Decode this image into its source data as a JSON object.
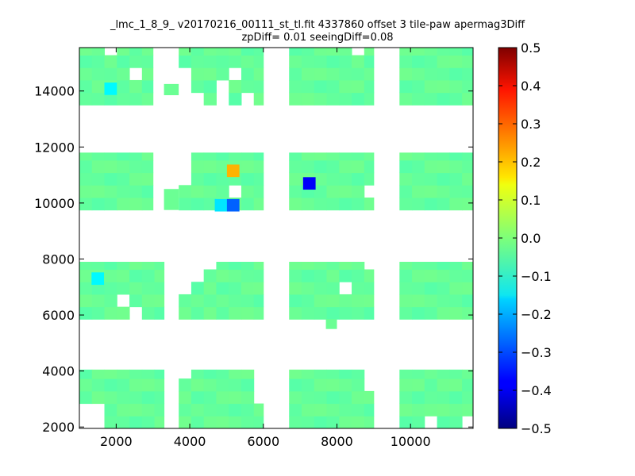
{
  "chart_data": {
    "type": "heatmap",
    "title_lines": [
      "_lmc_1_8_9_ v20170216_00111_st_tl.fit 4337860 offset 3 tile-paw apermag3Diff",
      "zpDiff= 0.01 seeingDiff=0.08"
    ],
    "xlabel": "",
    "ylabel": "",
    "xlim": [
      1000,
      11700
    ],
    "ylim": [
      1950,
      15550
    ],
    "xticks": [
      2000,
      4000,
      6000,
      8000,
      10000
    ],
    "yticks": [
      2000,
      4000,
      6000,
      8000,
      10000,
      12000,
      14000
    ],
    "colorbar": {
      "colormap": "jet",
      "range": [
        -0.5,
        0.5
      ],
      "ticks": [
        "0.5",
        "0.4",
        "0.3",
        "0.2",
        "0.1",
        "0.0",
        "−0.1",
        "−0.2",
        "−0.3",
        "−0.4",
        "−0.5"
      ]
    },
    "grid": false,
    "cell_size": [
      340,
      445
    ],
    "background_value": -0.02,
    "regions": [
      {
        "x": [
          1000,
          3000
        ],
        "y": [
          13500,
          15550
        ]
      },
      {
        "x": [
          3700,
          6000
        ],
        "y": [
          13500,
          15550
        ]
      },
      {
        "x": [
          6700,
          9000
        ],
        "y": [
          13500,
          15550
        ]
      },
      {
        "x": [
          9700,
          11700
        ],
        "y": [
          13500,
          15550
        ]
      },
      {
        "x": [
          1000,
          3000
        ],
        "y": [
          9750,
          11800
        ]
      },
      {
        "x": [
          3700,
          6000
        ],
        "y": [
          9750,
          11800
        ]
      },
      {
        "x": [
          6700,
          9000
        ],
        "y": [
          9750,
          11800
        ]
      },
      {
        "x": [
          9700,
          11700
        ],
        "y": [
          9750,
          11800
        ]
      },
      {
        "x": [
          1000,
          3300
        ],
        "y": [
          5850,
          7900
        ]
      },
      {
        "x": [
          3700,
          6000
        ],
        "y": [
          5850,
          7900
        ]
      },
      {
        "x": [
          6700,
          9000
        ],
        "y": [
          5850,
          7900
        ]
      },
      {
        "x": [
          9700,
          11700
        ],
        "y": [
          5850,
          7900
        ]
      },
      {
        "x": [
          1000,
          3300
        ],
        "y": [
          1950,
          4050
        ]
      },
      {
        "x": [
          3700,
          6000
        ],
        "y": [
          1950,
          4050
        ]
      },
      {
        "x": [
          6700,
          9000
        ],
        "y": [
          1950,
          4050
        ]
      },
      {
        "x": [
          9700,
          11700
        ],
        "y": [
          1950,
          4050
        ]
      }
    ],
    "holes": [
      {
        "x": [
          1700,
          2050
        ],
        "y": [
          15150,
          15550
        ]
      },
      {
        "x": [
          2350,
          2650
        ],
        "y": [
          14250,
          14700
        ]
      },
      {
        "x": [
          3700,
          4050
        ],
        "y": [
          13500,
          14700
        ]
      },
      {
        "x": [
          4050,
          4350
        ],
        "y": [
          13500,
          13850
        ]
      },
      {
        "x": [
          4650,
          5000
        ],
        "y": [
          13500,
          14250
        ]
      },
      {
        "x": [
          5000,
          5350
        ],
        "y": [
          14250,
          14700
        ]
      },
      {
        "x": [
          5350,
          5700
        ],
        "y": [
          13500,
          13850
        ]
      },
      {
        "x": [
          8350,
          8650
        ],
        "y": [
          15150,
          15550
        ]
      },
      {
        "x": [
          5000,
          5350
        ],
        "y": [
          10150,
          10500
        ]
      },
      {
        "x": [
          3700,
          4050
        ],
        "y": [
          10500,
          11800
        ]
      },
      {
        "x": [
          8650,
          9000
        ],
        "y": [
          10150,
          10500
        ]
      },
      {
        "x": [
          2350,
          2650
        ],
        "y": [
          5850,
          6250
        ]
      },
      {
        "x": [
          2000,
          2350
        ],
        "y": [
          6250,
          6600
        ]
      },
      {
        "x": [
          3700,
          4050
        ],
        "y": [
          6600,
          7900
        ]
      },
      {
        "x": [
          4050,
          4350
        ],
        "y": [
          7050,
          7900
        ]
      },
      {
        "x": [
          4350,
          4650
        ],
        "y": [
          7500,
          7900
        ]
      },
      {
        "x": [
          8000,
          8350
        ],
        "y": [
          6600,
          7050
        ]
      },
      {
        "x": [
          8650,
          9000
        ],
        "y": [
          7500,
          7900
        ]
      },
      {
        "x": [
          1000,
          1700
        ],
        "y": [
          1950,
          2800
        ]
      },
      {
        "x": [
          3700,
          4050
        ],
        "y": [
          3650,
          4050
        ]
      },
      {
        "x": [
          5700,
          6000
        ],
        "y": [
          2800,
          4050
        ]
      },
      {
        "x": [
          8650,
          9000
        ],
        "y": [
          3200,
          4050
        ]
      },
      {
        "x": [
          10350,
          10700
        ],
        "y": [
          1950,
          2400
        ]
      },
      {
        "x": [
          11350,
          11700
        ],
        "y": [
          1950,
          2400
        ]
      }
    ],
    "extra_cells": [
      {
        "x": [
          7700,
          8000
        ],
        "y": [
          5500,
          5850
        ],
        "value": -0.02
      },
      {
        "x": [
          3300,
          3700
        ],
        "y": [
          13850,
          14250
        ],
        "value": -0.02
      },
      {
        "x": [
          3300,
          3700
        ],
        "y": [
          9750,
          10500
        ],
        "value": -0.02
      }
    ],
    "highlight_cells": [
      {
        "x": 1850,
        "y": 14080,
        "value": -0.13
      },
      {
        "x": 5180,
        "y": 11150,
        "value": 0.2
      },
      {
        "x": 4850,
        "y": 9920,
        "value": -0.15
      },
      {
        "x": 5180,
        "y": 9920,
        "value": -0.28
      },
      {
        "x": 7250,
        "y": 10700,
        "value": -0.38
      },
      {
        "x": 1500,
        "y": 7300,
        "value": -0.13
      }
    ]
  }
}
